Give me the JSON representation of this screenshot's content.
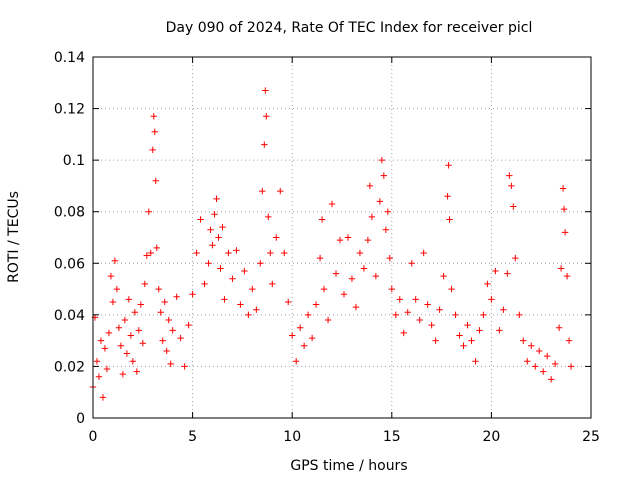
{
  "chart_data": {
    "type": "scatter",
    "title": "Day 090 of 2024, Rate Of TEC Index for receiver picl",
    "xlabel": "GPS time / hours",
    "ylabel": "ROTI / TECUs",
    "xlim": [
      0,
      25
    ],
    "ylim": [
      0,
      0.14
    ],
    "xticks": [
      0,
      5,
      10,
      15,
      20,
      25
    ],
    "xtick_labels": [
      "0",
      "5",
      "10",
      "15",
      "20",
      "25"
    ],
    "yticks": [
      0,
      0.02,
      0.04,
      0.06,
      0.08,
      0.1,
      0.12,
      0.14
    ],
    "ytick_labels": [
      "0",
      "0.02",
      "0.04",
      "0.06",
      "0.08",
      "0.1",
      "0.12",
      "0.14"
    ],
    "grid": true,
    "marker": "+",
    "color": "#ff0000",
    "series": [
      {
        "name": "ROTI",
        "points": [
          [
            0.0,
            0.012
          ],
          [
            0.1,
            0.039
          ],
          [
            0.2,
            0.022
          ],
          [
            0.3,
            0.016
          ],
          [
            0.4,
            0.03
          ],
          [
            0.5,
            0.008
          ],
          [
            0.6,
            0.027
          ],
          [
            0.7,
            0.019
          ],
          [
            0.8,
            0.033
          ],
          [
            0.9,
            0.055
          ],
          [
            1.0,
            0.045
          ],
          [
            1.1,
            0.061
          ],
          [
            1.2,
            0.05
          ],
          [
            1.3,
            0.035
          ],
          [
            1.4,
            0.028
          ],
          [
            1.5,
            0.017
          ],
          [
            1.6,
            0.038
          ],
          [
            1.7,
            0.025
          ],
          [
            1.8,
            0.046
          ],
          [
            1.9,
            0.032
          ],
          [
            2.0,
            0.022
          ],
          [
            2.1,
            0.041
          ],
          [
            2.2,
            0.018
          ],
          [
            2.3,
            0.034
          ],
          [
            2.4,
            0.044
          ],
          [
            2.5,
            0.029
          ],
          [
            2.6,
            0.052
          ],
          [
            2.7,
            0.063
          ],
          [
            2.8,
            0.08
          ],
          [
            2.9,
            0.064
          ],
          [
            3.0,
            0.104
          ],
          [
            3.05,
            0.117
          ],
          [
            3.1,
            0.111
          ],
          [
            3.15,
            0.092
          ],
          [
            3.2,
            0.066
          ],
          [
            3.3,
            0.05
          ],
          [
            3.4,
            0.041
          ],
          [
            3.5,
            0.03
          ],
          [
            3.6,
            0.045
          ],
          [
            3.7,
            0.026
          ],
          [
            3.8,
            0.038
          ],
          [
            3.9,
            0.021
          ],
          [
            4.0,
            0.034
          ],
          [
            4.2,
            0.047
          ],
          [
            4.4,
            0.031
          ],
          [
            4.6,
            0.02
          ],
          [
            4.8,
            0.036
          ],
          [
            5.0,
            0.048
          ],
          [
            5.2,
            0.064
          ],
          [
            5.4,
            0.077
          ],
          [
            5.6,
            0.052
          ],
          [
            5.8,
            0.06
          ],
          [
            5.9,
            0.073
          ],
          [
            6.0,
            0.067
          ],
          [
            6.1,
            0.079
          ],
          [
            6.2,
            0.085
          ],
          [
            6.3,
            0.07
          ],
          [
            6.4,
            0.058
          ],
          [
            6.5,
            0.074
          ],
          [
            6.6,
            0.046
          ],
          [
            6.8,
            0.064
          ],
          [
            7.0,
            0.054
          ],
          [
            7.2,
            0.065
          ],
          [
            7.4,
            0.044
          ],
          [
            7.6,
            0.057
          ],
          [
            7.8,
            0.04
          ],
          [
            8.0,
            0.05
          ],
          [
            8.2,
            0.042
          ],
          [
            8.4,
            0.06
          ],
          [
            8.5,
            0.088
          ],
          [
            8.6,
            0.106
          ],
          [
            8.65,
            0.127
          ],
          [
            8.7,
            0.117
          ],
          [
            8.8,
            0.078
          ],
          [
            8.9,
            0.064
          ],
          [
            9.0,
            0.052
          ],
          [
            9.2,
            0.07
          ],
          [
            9.4,
            0.088
          ],
          [
            9.6,
            0.064
          ],
          [
            9.8,
            0.045
          ],
          [
            10.0,
            0.032
          ],
          [
            10.2,
            0.022
          ],
          [
            10.4,
            0.035
          ],
          [
            10.6,
            0.028
          ],
          [
            10.8,
            0.04
          ],
          [
            11.0,
            0.031
          ],
          [
            11.2,
            0.044
          ],
          [
            11.4,
            0.062
          ],
          [
            11.5,
            0.077
          ],
          [
            11.6,
            0.05
          ],
          [
            11.8,
            0.038
          ],
          [
            12.0,
            0.083
          ],
          [
            12.2,
            0.056
          ],
          [
            12.4,
            0.069
          ],
          [
            12.6,
            0.048
          ],
          [
            12.8,
            0.07
          ],
          [
            13.0,
            0.054
          ],
          [
            13.2,
            0.043
          ],
          [
            13.4,
            0.064
          ],
          [
            13.6,
            0.058
          ],
          [
            13.8,
            0.069
          ],
          [
            13.9,
            0.09
          ],
          [
            14.0,
            0.078
          ],
          [
            14.2,
            0.055
          ],
          [
            14.4,
            0.084
          ],
          [
            14.5,
            0.1
          ],
          [
            14.6,
            0.094
          ],
          [
            14.7,
            0.073
          ],
          [
            14.8,
            0.08
          ],
          [
            14.9,
            0.062
          ],
          [
            15.0,
            0.05
          ],
          [
            15.2,
            0.04
          ],
          [
            15.4,
            0.046
          ],
          [
            15.6,
            0.033
          ],
          [
            15.8,
            0.041
          ],
          [
            16.0,
            0.06
          ],
          [
            16.2,
            0.046
          ],
          [
            16.4,
            0.038
          ],
          [
            16.6,
            0.064
          ],
          [
            16.8,
            0.044
          ],
          [
            17.0,
            0.036
          ],
          [
            17.2,
            0.03
          ],
          [
            17.4,
            0.042
          ],
          [
            17.6,
            0.055
          ],
          [
            17.8,
            0.086
          ],
          [
            17.85,
            0.098
          ],
          [
            17.9,
            0.077
          ],
          [
            18.0,
            0.05
          ],
          [
            18.2,
            0.04
          ],
          [
            18.4,
            0.032
          ],
          [
            18.6,
            0.028
          ],
          [
            18.8,
            0.036
          ],
          [
            19.0,
            0.03
          ],
          [
            19.2,
            0.022
          ],
          [
            19.4,
            0.034
          ],
          [
            19.6,
            0.04
          ],
          [
            19.8,
            0.052
          ],
          [
            20.0,
            0.046
          ],
          [
            20.2,
            0.057
          ],
          [
            20.4,
            0.034
          ],
          [
            20.6,
            0.042
          ],
          [
            20.8,
            0.056
          ],
          [
            20.9,
            0.094
          ],
          [
            21.0,
            0.09
          ],
          [
            21.1,
            0.082
          ],
          [
            21.2,
            0.062
          ],
          [
            21.4,
            0.04
          ],
          [
            21.6,
            0.03
          ],
          [
            21.8,
            0.022
          ],
          [
            22.0,
            0.028
          ],
          [
            22.2,
            0.02
          ],
          [
            22.4,
            0.026
          ],
          [
            22.6,
            0.018
          ],
          [
            22.8,
            0.024
          ],
          [
            23.0,
            0.015
          ],
          [
            23.2,
            0.021
          ],
          [
            23.4,
            0.035
          ],
          [
            23.5,
            0.058
          ],
          [
            23.6,
            0.089
          ],
          [
            23.65,
            0.081
          ],
          [
            23.7,
            0.072
          ],
          [
            23.8,
            0.055
          ],
          [
            23.9,
            0.03
          ],
          [
            24.0,
            0.02
          ]
        ]
      }
    ]
  }
}
